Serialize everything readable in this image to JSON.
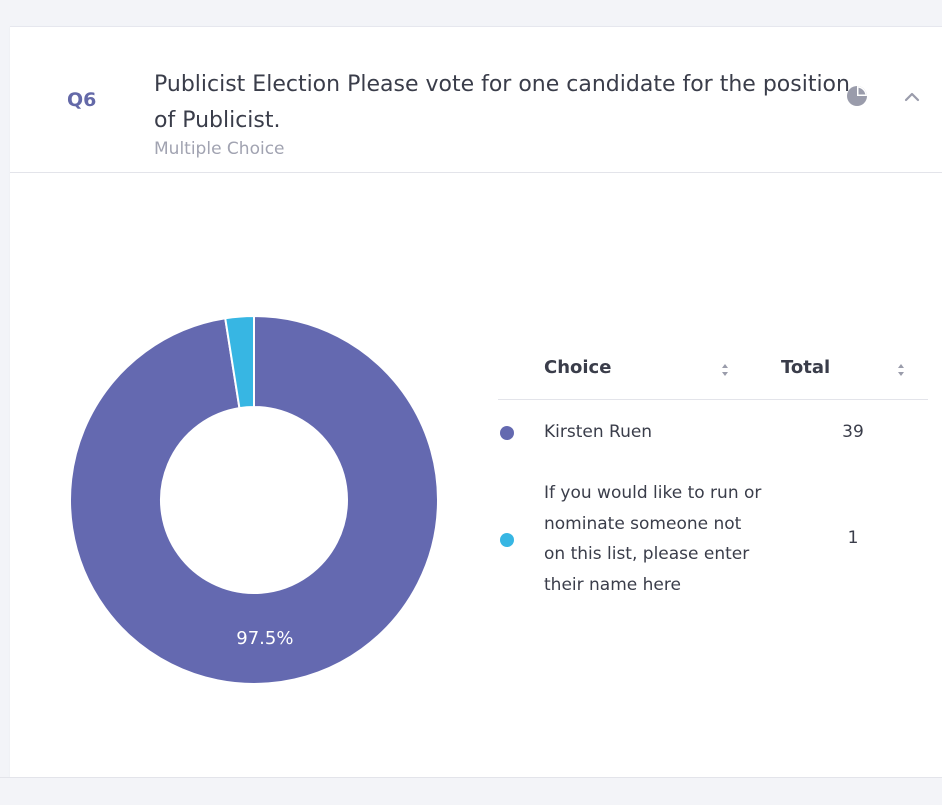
{
  "question": {
    "number": "Q6",
    "title": "Publicist Election Please vote for one candidate for the position of Publicist.",
    "type": "Multiple Choice"
  },
  "table": {
    "choice_header": "Choice",
    "total_header": "Total",
    "rows": [
      {
        "choice": "Kirsten Ruen",
        "total": "39",
        "color": "#6469b0"
      },
      {
        "choice": "If you would like to run or nominate someone not on this list, please enter their name here",
        "total": "1",
        "color": "#37b6e3"
      }
    ]
  },
  "chart_data": {
    "type": "pie",
    "style": "donut",
    "labels": [
      "Kirsten Ruen",
      "If you would like to run or nominate someone not on this list, please enter their name here"
    ],
    "values": [
      39,
      1
    ],
    "colors": [
      "#6469b0",
      "#37b6e3"
    ],
    "data_labels": [
      "97.5%",
      ""
    ]
  },
  "icons": {
    "chart_toggle": "pie-chart-icon",
    "collapse": "chevron-up-icon",
    "sort": "sort-icon"
  }
}
